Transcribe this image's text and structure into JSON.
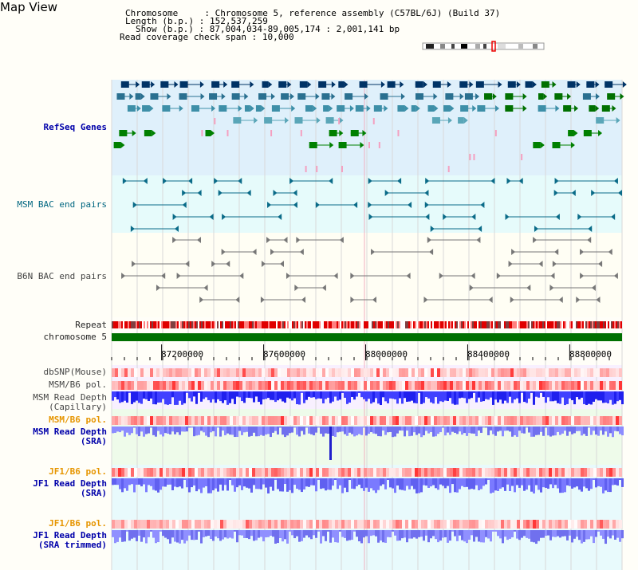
{
  "page": {
    "title": "Map View"
  },
  "header": {
    "chromosome_label": "Chromosome",
    "chromosome_value": "Chromosome 5, reference assembly (C57BL/6J) (Build 37)",
    "length_label": "Length (b.p.)",
    "length_value": "152,537,259",
    "show_label": "Show (b.p.)",
    "show_value": "87,004,034-89,005,174 : 2,001,141 bp",
    "coverage_label": "Read coverage check span",
    "coverage_value": "10,000"
  },
  "tracks": {
    "refseq": "RefSeq Genes",
    "msm_bac": "MSM BAC end pairs",
    "b6n_bac": "B6N BAC end pairs",
    "repeat": "Repeat",
    "chromosome": "chromosome 5",
    "dbsnp": "dbSNP(Mouse)",
    "msm_b6_pol_1": "MSM/B6 pol.",
    "msm_depth_cap_1": "MSM Read Depth",
    "msm_depth_cap_2": "(Capillary)",
    "msm_b6_pol_2": "MSM/B6 pol.",
    "msm_depth_sra_1": "MSM Read Depth",
    "msm_depth_sra_2": "(SRA)",
    "jf1_b6_pol_1": "JF1/B6 pol.",
    "jf1_depth_sra_1": "JF1 Read Depth",
    "jf1_depth_sra_2": "(SRA)",
    "jf1_b6_pol_2": "JF1/B6 pol.",
    "jf1_depth_trim_1": "JF1 Read Depth",
    "jf1_depth_trim_2": "(SRA trimmed)"
  },
  "axis": {
    "ticks": [
      "87200000",
      "87600000",
      "88000000",
      "88400000",
      "88800000"
    ],
    "tick_values": [
      87200000,
      87600000,
      88000000,
      88400000,
      88800000
    ],
    "range": [
      87004034,
      89005174
    ]
  },
  "colors": {
    "refseq_bg": "#dff0fb",
    "msm_bg": "#e6fbfb",
    "chromosome": "#007000",
    "depth": "#5b5bff",
    "pol": "#ff6060"
  }
}
